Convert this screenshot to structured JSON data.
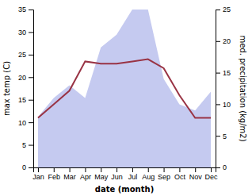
{
  "chart_data": {
    "type": "line",
    "xlabel": "date (month)",
    "ylabel": "max temp (C)",
    "y2label": "med. precipitation (kg/m2)",
    "categories": [
      "Jan",
      "Feb",
      "Mar",
      "Apr",
      "May",
      "Jun",
      "Jul",
      "Aug",
      "Sep",
      "Oct",
      "Nov",
      "Dec"
    ],
    "series": [
      {
        "type": "area",
        "axis": "y2",
        "color": "#c5caf0",
        "values": [
          8,
          11,
          13,
          11,
          19,
          21,
          25,
          25,
          14,
          10,
          9,
          12
        ]
      },
      {
        "type": "line",
        "color": "#993344",
        "values": [
          11,
          14,
          17,
          23.5,
          23,
          23,
          23.5,
          24,
          22,
          16,
          11,
          11
        ]
      }
    ],
    "ylim": [
      0,
      35
    ],
    "yticks": [
      0,
      5,
      10,
      15,
      20,
      25,
      30,
      35
    ],
    "y2lim": [
      0,
      25
    ],
    "y2ticks": [
      0,
      5,
      10,
      15,
      20,
      25
    ],
    "grid": false
  }
}
